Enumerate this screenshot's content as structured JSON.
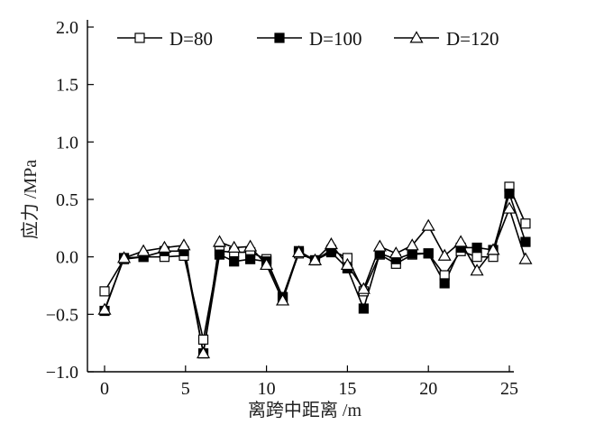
{
  "chart_data": {
    "type": "line",
    "title": "",
    "xlabel": "离跨中距离 /m",
    "ylabel": "应力 /MPa",
    "xlim": [
      -0.7,
      26.5
    ],
    "ylim": [
      -1.0,
      2.0
    ],
    "xticks": [
      0,
      5,
      10,
      15,
      20,
      25
    ],
    "yticks": [
      -1.0,
      -0.5,
      0.0,
      0.5,
      1.0,
      1.5,
      2.0
    ],
    "xtick_labels": [
      "0",
      "5",
      "10",
      "15",
      "20",
      "25"
    ],
    "ytick_labels": [
      "−1.0",
      "−0.5",
      "0.0",
      "0.5",
      "1.0",
      "1.5",
      "2.0"
    ],
    "grid": false,
    "legend_position": "top, horizontal, inside",
    "x": [
      0,
      1.2,
      2.4,
      3.7,
      4.9,
      6.1,
      7.1,
      8.0,
      9.0,
      10.0,
      11.0,
      12.0,
      13.0,
      14.0,
      15.0,
      16.0,
      17.0,
      18.0,
      19.0,
      20.0,
      21.0,
      22.0,
      23.0,
      24.0,
      25.0,
      26.0
    ],
    "series": [
      {
        "name": "D=80",
        "marker": "open-square",
        "values": [
          -0.3,
          -0.02,
          0.0,
          0.0,
          0.01,
          -0.72,
          0.05,
          0.04,
          0.04,
          -0.02,
          -0.35,
          0.03,
          -0.03,
          0.06,
          -0.01,
          -0.3,
          0.02,
          -0.06,
          0.02,
          0.03,
          -0.16,
          0.05,
          0.0,
          0.0,
          0.61,
          0.29
        ]
      },
      {
        "name": "D=100",
        "marker": "filled-square",
        "values": [
          -0.47,
          -0.01,
          0.0,
          0.05,
          0.05,
          -0.84,
          0.02,
          -0.04,
          -0.02,
          -0.04,
          -0.35,
          0.05,
          -0.03,
          0.04,
          -0.1,
          -0.45,
          0.03,
          -0.02,
          0.03,
          0.03,
          -0.23,
          0.08,
          0.08,
          0.06,
          0.55,
          0.13
        ]
      },
      {
        "name": "D=120",
        "marker": "open-triangle",
        "values": [
          -0.46,
          -0.01,
          0.05,
          0.08,
          0.1,
          -0.84,
          0.13,
          0.08,
          0.09,
          -0.07,
          -0.38,
          0.04,
          -0.03,
          0.11,
          -0.07,
          -0.28,
          0.09,
          0.03,
          0.1,
          0.27,
          0.01,
          0.13,
          -0.12,
          0.06,
          0.42,
          -0.02
        ]
      }
    ]
  },
  "legend": {
    "items": [
      "D=80",
      "D=100",
      "D=120"
    ]
  },
  "axes": {
    "xlabel": "离跨中距离 /m",
    "ylabel": "应力 /MPa"
  }
}
